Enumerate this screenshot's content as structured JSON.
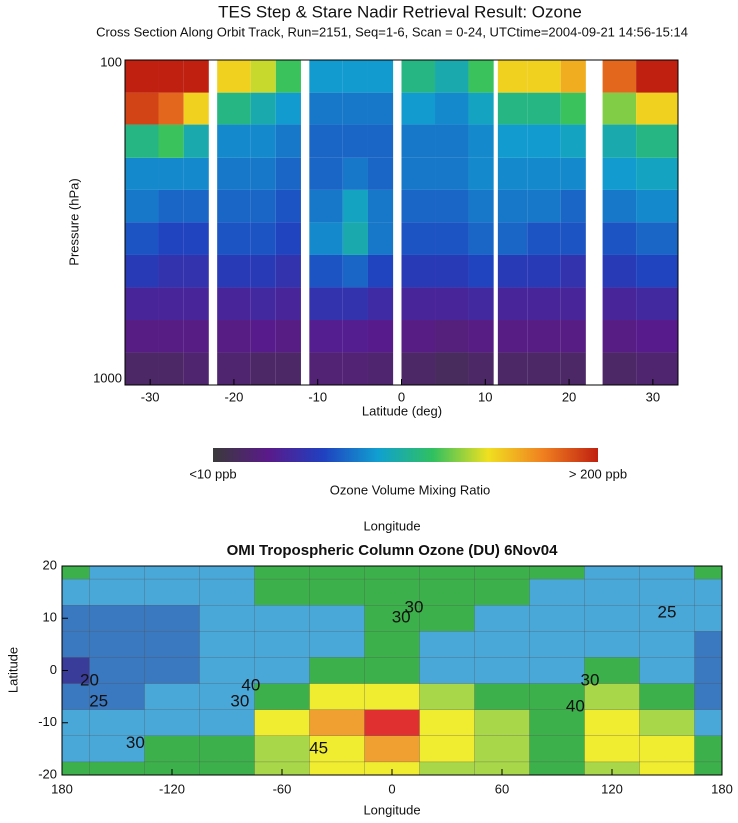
{
  "chart_data": [
    {
      "type": "heatmap",
      "title": "TES Step & Stare Nadir Retrieval Result: Ozone",
      "subtitle": "Cross Section Along Orbit Track, Run=2151, Seq=1-6, Scan = 0-24, UTCtime=2004-09-21 14:56-15:14",
      "x_label": "Latitude (deg)",
      "y_label": "Pressure (hPa)",
      "xlim": [
        -33,
        33
      ],
      "xticks": [
        -30,
        -20,
        -10,
        0,
        10,
        20,
        30
      ],
      "ylim": [
        1000,
        100
      ],
      "yticks": [
        100,
        1000
      ],
      "y_log": true,
      "xbins": [
        -33,
        -29,
        -26,
        -23,
        -22,
        -18,
        -15,
        -12,
        -11,
        -7,
        -4,
        -1,
        0,
        4,
        8,
        11,
        11.5,
        15,
        19,
        22,
        24,
        28,
        33
      ],
      "ybins": [
        1000,
        794,
        631,
        501,
        398,
        316,
        251,
        200,
        158,
        126,
        100
      ],
      "values": [
        [
          25,
          25,
          28,
          null,
          28,
          25,
          25,
          null,
          30,
          30,
          28,
          null,
          25,
          22,
          25,
          null,
          25,
          25,
          25,
          null,
          25,
          28
        ],
        [
          35,
          35,
          35,
          null,
          35,
          38,
          35,
          null,
          40,
          40,
          38,
          null,
          35,
          32,
          35,
          null,
          35,
          35,
          35,
          null,
          35,
          38
        ],
        [
          45,
          45,
          45,
          null,
          45,
          48,
          45,
          null,
          55,
          55,
          50,
          null,
          45,
          45,
          48,
          null,
          45,
          45,
          45,
          null,
          45,
          48
        ],
        [
          60,
          55,
          55,
          null,
          60,
          60,
          55,
          null,
          70,
          75,
          65,
          null,
          60,
          60,
          65,
          null,
          60,
          60,
          55,
          null,
          60,
          65
        ],
        [
          70,
          65,
          65,
          null,
          70,
          70,
          65,
          null,
          85,
          100,
          80,
          null,
          70,
          70,
          75,
          null,
          75,
          70,
          70,
          null,
          70,
          75
        ],
        [
          80,
          75,
          75,
          null,
          75,
          75,
          70,
          null,
          80,
          95,
          80,
          null,
          75,
          75,
          80,
          null,
          80,
          80,
          75,
          null,
          80,
          85
        ],
        [
          85,
          85,
          85,
          null,
          80,
          80,
          75,
          null,
          75,
          80,
          75,
          null,
          80,
          80,
          85,
          null,
          85,
          85,
          85,
          null,
          90,
          95
        ],
        [
          110,
          120,
          100,
          null,
          85,
          85,
          80,
          null,
          75,
          75,
          75,
          null,
          80,
          80,
          85,
          null,
          90,
          90,
          95,
          null,
          100,
          110
        ],
        [
          190,
          180,
          150,
          null,
          110,
          100,
          90,
          null,
          80,
          80,
          80,
          null,
          90,
          85,
          95,
          null,
          110,
          110,
          120,
          null,
          130,
          150
        ],
        [
          200,
          200,
          200,
          null,
          150,
          140,
          120,
          null,
          90,
          90,
          90,
          null,
          110,
          100,
          120,
          null,
          150,
          150,
          160,
          null,
          180,
          200
        ]
      ],
      "clim": [
        10,
        200
      ],
      "colormap": [
        "#3a3a3a",
        "#5a1a8a",
        "#2040c0",
        "#10a0d0",
        "#30c060",
        "#f0e020",
        "#f08020",
        "#c02010"
      ],
      "colorbar": {
        "label": "Ozone Volume Mixing Ratio",
        "ticks": [
          {
            "value": 10,
            "label": "<10 ppb"
          },
          {
            "value": 200,
            "label": "> 200 ppb"
          }
        ]
      }
    },
    {
      "type": "contour",
      "top_label": "Longitude",
      "title": "OMI Tropospheric Column Ozone (DU) 6Nov04",
      "x_label": "Longitude",
      "y_label": "Latitude",
      "xlim": [
        -180,
        180
      ],
      "xticks": [
        {
          "value": -180,
          "label": "180"
        },
        -120,
        -60,
        0,
        60,
        120,
        180
      ],
      "ylim": [
        -20,
        20
      ],
      "yticks": [
        -20,
        -10,
        0,
        10,
        20
      ],
      "x": [
        -180,
        -150,
        -120,
        -90,
        -60,
        -30,
        0,
        30,
        60,
        90,
        120,
        150,
        180
      ],
      "y": [
        20,
        15,
        10,
        5,
        0,
        -5,
        -10,
        -15,
        -20
      ],
      "values": [
        [
          30,
          28,
          27,
          28,
          32,
          33,
          34,
          33,
          31,
          30,
          28,
          27,
          30
        ],
        [
          26,
          25,
          26,
          27,
          30,
          31,
          33,
          34,
          30,
          28,
          27,
          26,
          28
        ],
        [
          22,
          22,
          24,
          26,
          28,
          29,
          33,
          33,
          28,
          27,
          26,
          26,
          27
        ],
        [
          20,
          21,
          23,
          25,
          27,
          29,
          30,
          29,
          27,
          26,
          27,
          25,
          24
        ],
        [
          19,
          21,
          23,
          25,
          28,
          33,
          32,
          29,
          27,
          27,
          30,
          26,
          20
        ],
        [
          22,
          23,
          25,
          27,
          33,
          42,
          40,
          36,
          30,
          30,
          38,
          33,
          24
        ],
        [
          25,
          26,
          28,
          29,
          40,
          47,
          52,
          44,
          36,
          33,
          42,
          38,
          28
        ],
        [
          28,
          29,
          31,
          30,
          38,
          44,
          46,
          42,
          36,
          34,
          41,
          40,
          30
        ],
        [
          30,
          30,
          32,
          32,
          36,
          40,
          40,
          38,
          35,
          34,
          38,
          42,
          32
        ]
      ],
      "levels": [
        20,
        25,
        30,
        35,
        40,
        45,
        50
      ],
      "colors": [
        "#3a3c9a",
        "#3a78c0",
        "#4aa8d8",
        "#3cb04a",
        "#a8d84a",
        "#f0ec30",
        "#f0a030",
        "#e03030"
      ],
      "contour_labels": [
        {
          "value": 30,
          "x": 5,
          "y": 10
        },
        {
          "value": 30,
          "x": 12,
          "y": 12
        },
        {
          "value": 25,
          "x": 150,
          "y": 11
        },
        {
          "value": 20,
          "x": -165,
          "y": -2
        },
        {
          "value": 25,
          "x": -160,
          "y": -6
        },
        {
          "value": 30,
          "x": -140,
          "y": -14
        },
        {
          "value": 30,
          "x": -83,
          "y": -6
        },
        {
          "value": 40,
          "x": -77,
          "y": -3
        },
        {
          "value": 45,
          "x": -40,
          "y": -15
        },
        {
          "value": 40,
          "x": 100,
          "y": -7
        },
        {
          "value": 30,
          "x": 108,
          "y": -2
        }
      ]
    }
  ]
}
